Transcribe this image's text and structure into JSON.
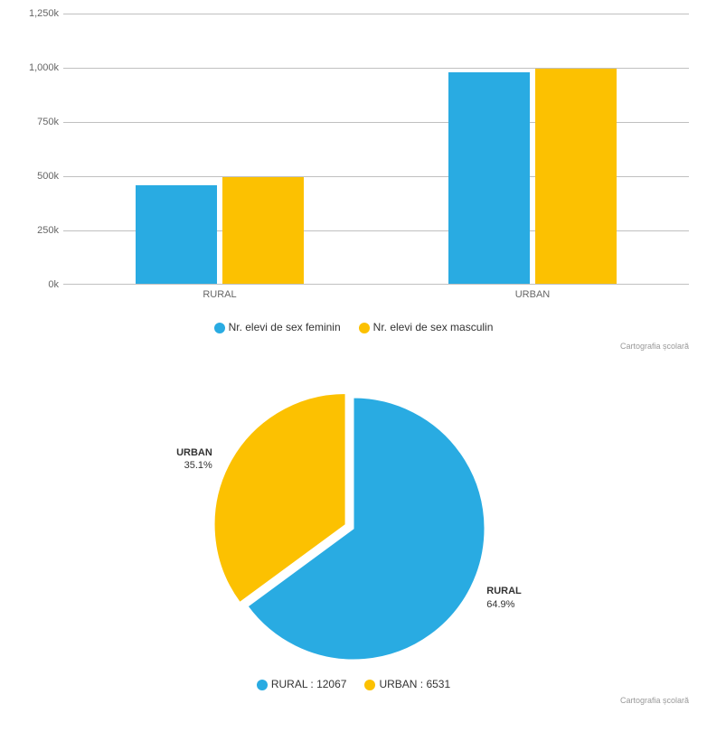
{
  "bar_chart": {
    "type": "bar",
    "categories": [
      "RURAL",
      "URBAN"
    ],
    "series": [
      {
        "name": "Nr. elevi de sex feminin",
        "color": "#29abe2",
        "values": [
          455000,
          975000
        ]
      },
      {
        "name": "Nr. elevi de sex masculin",
        "color": "#fcc101",
        "values": [
          490000,
          990000
        ]
      }
    ],
    "ylim": [
      0,
      1250000
    ],
    "ytick_step": 250000,
    "yticks": [
      "0k",
      "250k",
      "500k",
      "750k",
      "1,000k",
      "1,250k"
    ],
    "grid_color": "#c0c0c0",
    "background_color": "#ffffff",
    "label_fontsize": 11,
    "legend_fontsize": 12,
    "bar_width": 0.36,
    "credits": "Cartografia școlară"
  },
  "pie_chart": {
    "type": "pie",
    "slices": [
      {
        "name": "RURAL",
        "value": 12067,
        "percent": 64.9,
        "color": "#29abe2",
        "label": "RURAL",
        "percent_label": "64.9%"
      },
      {
        "name": "URBAN",
        "value": 6531,
        "percent": 35.1,
        "color": "#fcc101",
        "label": "URBAN",
        "percent_label": "35.1%",
        "pulled": true
      }
    ],
    "legend_items": [
      {
        "color": "#29abe2",
        "text": "RURAL : 12067"
      },
      {
        "color": "#fcc101",
        "text": "URBAN : 6531"
      }
    ],
    "background_color": "#ffffff",
    "label_fontsize": 11,
    "credits": "Cartografia școlară"
  }
}
